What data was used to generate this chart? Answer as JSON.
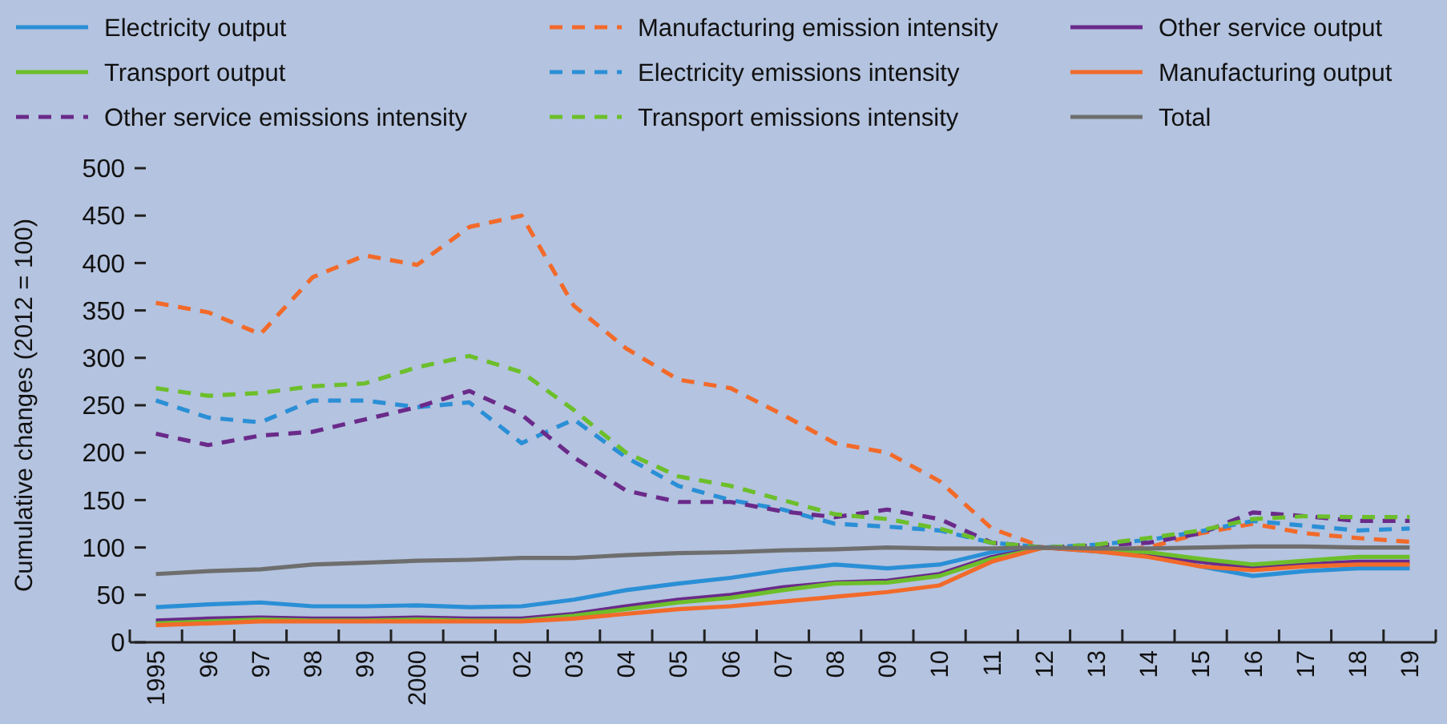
{
  "chart_data": {
    "type": "line",
    "ylabel": "Cumulative changes (2012 = 100)",
    "categories": [
      "1995",
      "96",
      "97",
      "98",
      "99",
      "2000",
      "01",
      "02",
      "03",
      "04",
      "05",
      "06",
      "07",
      "08",
      "09",
      "10",
      "11",
      "12",
      "13",
      "14",
      "15",
      "16",
      "17",
      "18",
      "19"
    ],
    "ylim": [
      0,
      500
    ],
    "yticks": [
      0,
      50,
      100,
      150,
      200,
      250,
      300,
      350,
      400,
      450,
      500
    ],
    "grid": false,
    "legend": "top",
    "marker": "none",
    "series": [
      {
        "name": "Electricity output",
        "color": "#2a8fd6",
        "line_style": "solid",
        "values": [
          37,
          40,
          42,
          38,
          38,
          39,
          37,
          38,
          45,
          55,
          62,
          68,
          76,
          82,
          78,
          82,
          95,
          100,
          96,
          92,
          80,
          70,
          75,
          78,
          78
        ]
      },
      {
        "name": "Manufacturing emission intensity",
        "color": "#f26a2a",
        "line_style": "dashed",
        "values": [
          358,
          348,
          325,
          385,
          408,
          398,
          438,
          450,
          355,
          310,
          277,
          268,
          240,
          210,
          200,
          170,
          120,
          100,
          97,
          100,
          115,
          125,
          115,
          110,
          106
        ]
      },
      {
        "name": "Other service output",
        "color": "#6a2a8a",
        "line_style": "solid",
        "values": [
          23,
          25,
          26,
          25,
          25,
          26,
          25,
          25,
          30,
          38,
          45,
          50,
          58,
          63,
          65,
          72,
          90,
          100,
          97,
          92,
          85,
          78,
          82,
          85,
          85
        ]
      },
      {
        "name": "Transport output",
        "color": "#6cbf2a",
        "line_style": "solid",
        "values": [
          20,
          22,
          24,
          23,
          23,
          24,
          23,
          23,
          28,
          35,
          42,
          47,
          55,
          62,
          63,
          70,
          88,
          100,
          98,
          95,
          88,
          82,
          86,
          90,
          90
        ]
      },
      {
        "name": "Electricity emissions intensity",
        "color": "#2a8fd6",
        "line_style": "dashed",
        "values": [
          255,
          237,
          232,
          255,
          255,
          248,
          253,
          210,
          235,
          195,
          165,
          150,
          140,
          125,
          122,
          118,
          105,
          100,
          103,
          108,
          117,
          128,
          123,
          118,
          120
        ]
      },
      {
        "name": "Manufacturing output",
        "color": "#f26a2a",
        "line_style": "solid",
        "values": [
          18,
          20,
          22,
          22,
          22,
          22,
          22,
          22,
          25,
          30,
          35,
          38,
          43,
          48,
          53,
          60,
          85,
          100,
          96,
          90,
          80,
          76,
          80,
          82,
          82
        ]
      },
      {
        "name": "Other service emissions intensity",
        "color": "#6a2a8a",
        "line_style": "dashed",
        "values": [
          220,
          208,
          218,
          222,
          235,
          248,
          265,
          240,
          195,
          160,
          148,
          148,
          138,
          132,
          140,
          130,
          105,
          100,
          102,
          105,
          115,
          137,
          133,
          128,
          128
        ]
      },
      {
        "name": "Transport emissions intensity",
        "color": "#6cbf2a",
        "line_style": "dashed",
        "values": [
          268,
          260,
          263,
          270,
          273,
          290,
          302,
          285,
          245,
          200,
          175,
          165,
          150,
          135,
          130,
          120,
          105,
          100,
          103,
          110,
          118,
          130,
          133,
          132,
          132
        ]
      },
      {
        "name": "Total",
        "color": "#6e6e6e",
        "line_style": "solid",
        "values": [
          72,
          75,
          77,
          82,
          84,
          86,
          87,
          89,
          89,
          92,
          94,
          95,
          97,
          98,
          100,
          99,
          99,
          100,
          99,
          99,
          100,
          101,
          101,
          100,
          100
        ]
      }
    ]
  }
}
